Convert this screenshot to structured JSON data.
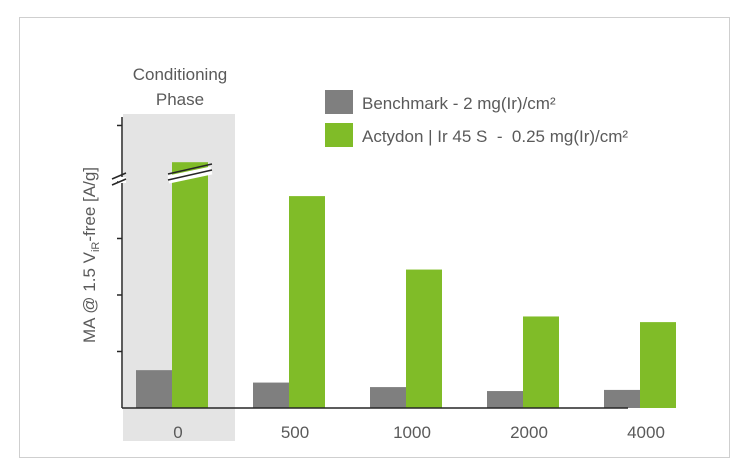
{
  "chart_data": {
    "type": "bar",
    "title": "",
    "xlabel": "",
    "ylabel": "MA @ 1.5 V",
    "ylabel_sub": "iR",
    "ylabel_suffix": "-free [A/g]",
    "categories": [
      "0",
      "500",
      "1000",
      "2000",
      "4000"
    ],
    "series": [
      {
        "name": "Benchmark - 2 mg(Ir)/cm²",
        "color": "#7f7f7f",
        "values": [
          0.67,
          0.45,
          0.37,
          0.3,
          0.32
        ]
      },
      {
        "name": "Actydon | Ir 45 S  -  0.25 mg(Ir)/cm²",
        "color": "#80bc28",
        "values": [
          4.35,
          3.75,
          2.45,
          1.62,
          1.52
        ]
      }
    ],
    "ylim": [
      0,
      5.15
    ],
    "y_ticks": [
      1,
      2,
      3,
      4,
      5
    ],
    "axis_break": true,
    "y_tick_labels_shown": false,
    "grid": false,
    "legend_position": "top-right",
    "annotation": {
      "text_line1": "Conditioning",
      "text_line2": "Phase",
      "category": "0",
      "shade_color": "#e4e4e4"
    }
  }
}
